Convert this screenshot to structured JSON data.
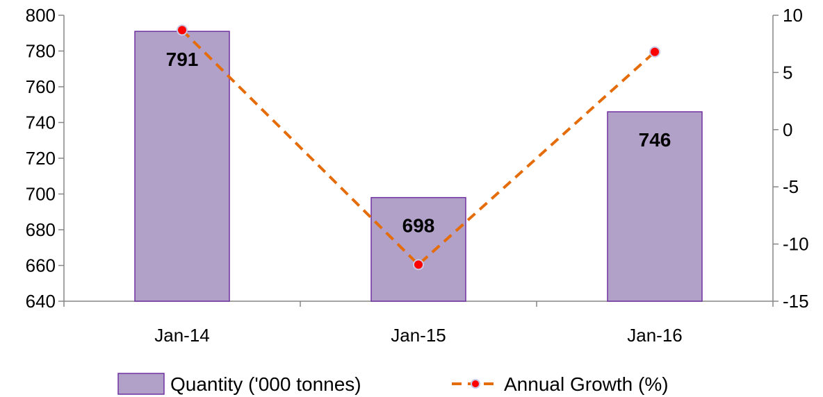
{
  "chart_data": {
    "type": "bar",
    "categories": [
      "Jan-14",
      "Jan-15",
      "Jan-16"
    ],
    "series": [
      {
        "name": "Quantity ('000 tonnes)",
        "type": "bar",
        "axis": "left",
        "values": [
          791,
          698,
          746
        ],
        "data_labels": [
          "791",
          "698",
          "746"
        ],
        "color": "#b1a0c7",
        "border_color": "#7030a0"
      },
      {
        "name": "Annual Growth (%)",
        "type": "line",
        "axis": "right",
        "values": [
          8.7,
          -11.8,
          6.8
        ],
        "color": "#e46c0a",
        "marker_color": "#ff0000",
        "line_style": "dashed"
      }
    ],
    "left_axis": {
      "min": 640,
      "max": 800,
      "step": 20,
      "ticks": [
        "640",
        "660",
        "680",
        "700",
        "720",
        "740",
        "760",
        "780",
        "800"
      ]
    },
    "right_axis": {
      "min": -15,
      "max": 10,
      "step": 5,
      "ticks": [
        "-15",
        "-10",
        "-5",
        "0",
        "5",
        "10"
      ]
    },
    "grid": false,
    "legend_position": "bottom",
    "axis_color": "#868686"
  }
}
